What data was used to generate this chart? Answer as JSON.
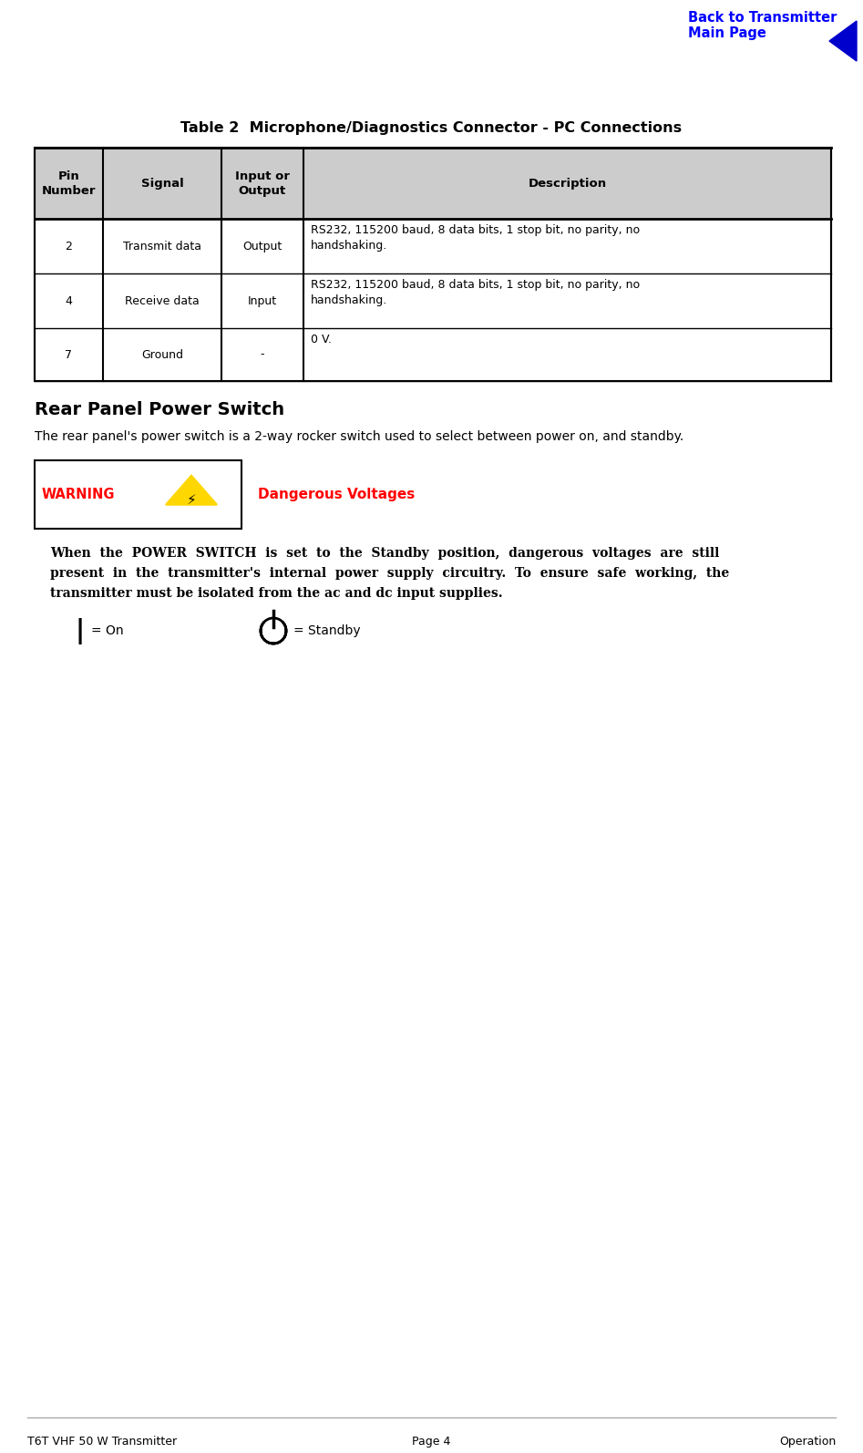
{
  "back_link_text": "Back to Transmitter\nMain Page",
  "back_link_color": "#0000FF",
  "arrow_color": "#0000CC",
  "table_title": "Table 2  Microphone/Diagnostics Connector - PC Connections",
  "table_header": [
    "Pin\nNumber",
    "Signal",
    "Input or\nOutput",
    "Description"
  ],
  "table_rows": [
    [
      "2",
      "Transmit data",
      "Output",
      "RS232, 115200 baud, 8 data bits, 1 stop bit, no parity, no\nhandshaking."
    ],
    [
      "4",
      "Receive data",
      "Input",
      "RS232, 115200 baud, 8 data bits, 1 stop bit, no parity, no\nhandshaking."
    ],
    [
      "7",
      "Ground",
      "-",
      "0 V."
    ]
  ],
  "header_bg": "#CCCCCC",
  "row_bg": "#FFFFFF",
  "section_title": "Rear Panel Power Switch",
  "section_body": "The rear panel's power switch is a 2-way rocker switch used to select between power on, and standby.",
  "warning_label": "WARNING",
  "warning_text": "Dangerous Voltages",
  "warning_box_bg": "#FFFFFF",
  "warning_box_border": "#000000",
  "warning_triangle_color": "#FFD700",
  "warning_triangle_border": "#8B6914",
  "warning_label_color": "#FF0000",
  "warning_text_color": "#FF0000",
  "bold_para_line1": "When  the  POWER  SWITCH  is  set  to  the  Standby  position,  dangerous  voltages  are  still",
  "bold_para_line2": "present  in  the  transmitter's  internal  power  supply  circuitry.  To  ensure  safe  working,  the",
  "bold_para_line3": "transmitter must be isolated from the ac and dc input supplies.",
  "on_label": "= On",
  "standby_label": "= Standby",
  "footer_left": "T6T VHF 50 W Transmitter",
  "footer_center": "Page 4",
  "footer_right": "Operation",
  "bg_color": "#FFFFFF",
  "text_color": "#000000"
}
